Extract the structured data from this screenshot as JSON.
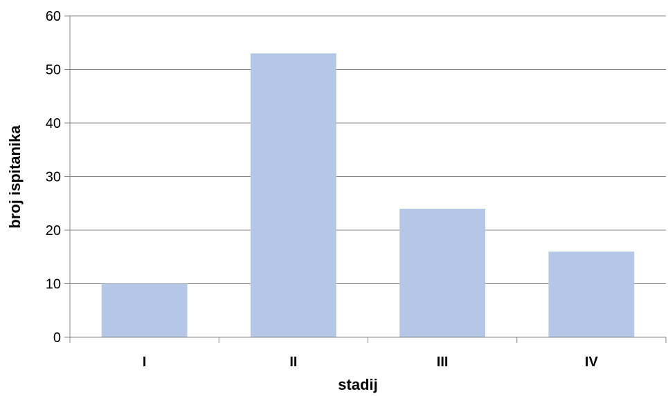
{
  "chart_data": {
    "type": "bar",
    "title": "",
    "xlabel": "stadij",
    "ylabel": "broj ispitanika",
    "categories": [
      "I",
      "II",
      "III",
      "IV"
    ],
    "values": [
      10,
      53,
      24,
      16
    ],
    "ylim": [
      0,
      60
    ],
    "yticks": [
      "0",
      "10",
      "20",
      "30",
      "40",
      "50",
      "60"
    ],
    "grid": true,
    "legend": "none",
    "bar_color": "#b4c7e7",
    "gridline_color": "#868686",
    "axis_color": "#868686"
  }
}
